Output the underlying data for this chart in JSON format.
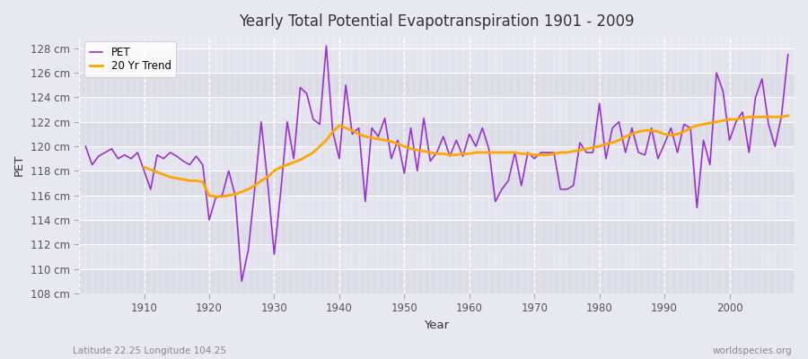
{
  "title": "Yearly Total Potential Evapotranspiration 1901 - 2009",
  "xlabel": "Year",
  "ylabel": "PET",
  "subtitle_left": "Latitude 22.25 Longitude 104.25",
  "subtitle_right": "worldspecies.org",
  "pet_color": "#9B30D0",
  "trend_color": "#FFA500",
  "background_color": "#E8E8F0",
  "plot_bg_color": "#DCDCE8",
  "band_color_light": "#E4E4EE",
  "band_color_dark": "#D5D5E2",
  "ylim": [
    108,
    129
  ],
  "ytick_interval": 2,
  "years": [
    1901,
    1902,
    1903,
    1904,
    1905,
    1906,
    1907,
    1908,
    1909,
    1910,
    1911,
    1912,
    1913,
    1914,
    1915,
    1916,
    1917,
    1918,
    1919,
    1920,
    1921,
    1922,
    1923,
    1924,
    1925,
    1926,
    1927,
    1928,
    1929,
    1930,
    1931,
    1932,
    1933,
    1934,
    1935,
    1936,
    1937,
    1938,
    1939,
    1940,
    1941,
    1942,
    1943,
    1944,
    1945,
    1946,
    1947,
    1948,
    1949,
    1950,
    1951,
    1952,
    1953,
    1954,
    1955,
    1956,
    1957,
    1958,
    1959,
    1960,
    1961,
    1962,
    1963,
    1964,
    1965,
    1966,
    1967,
    1968,
    1969,
    1970,
    1971,
    1972,
    1973,
    1974,
    1975,
    1976,
    1977,
    1978,
    1979,
    1980,
    1981,
    1982,
    1983,
    1984,
    1985,
    1986,
    1987,
    1988,
    1989,
    1990,
    1991,
    1992,
    1993,
    1994,
    1995,
    1996,
    1997,
    1998,
    1999,
    2000,
    2001,
    2002,
    2003,
    2004,
    2005,
    2006,
    2007,
    2008,
    2009
  ],
  "pet_values": [
    120.0,
    118.5,
    119.2,
    119.5,
    119.8,
    119.0,
    119.3,
    119.0,
    119.5,
    118.0,
    116.5,
    119.3,
    119.0,
    119.5,
    119.2,
    118.8,
    118.5,
    119.2,
    118.5,
    114.0,
    115.8,
    116.0,
    118.0,
    116.0,
    109.0,
    111.5,
    116.5,
    122.0,
    117.0,
    111.2,
    116.3,
    122.0,
    119.0,
    124.8,
    124.3,
    122.2,
    121.8,
    128.2,
    121.2,
    119.0,
    125.0,
    121.0,
    121.5,
    115.5,
    121.5,
    120.8,
    122.3,
    119.0,
    120.5,
    117.8,
    121.5,
    118.0,
    122.3,
    118.8,
    119.5,
    120.8,
    119.2,
    120.5,
    119.2,
    121.0,
    120.0,
    121.5,
    119.8,
    115.5,
    116.5,
    117.2,
    119.5,
    116.8,
    119.5,
    119.0,
    119.5,
    119.5,
    119.5,
    116.5,
    116.5,
    116.8,
    120.3,
    119.5,
    119.5,
    123.5,
    119.0,
    121.5,
    122.0,
    119.5,
    121.5,
    119.5,
    119.3,
    121.5,
    119.0,
    120.2,
    121.5,
    119.5,
    121.8,
    121.5,
    115.0,
    120.5,
    118.5,
    126.0,
    124.5,
    120.5,
    122.0,
    122.8,
    119.5,
    124.0,
    125.5,
    121.8,
    120.0,
    122.5,
    127.5
  ],
  "trend_years": [
    1910,
    1911,
    1912,
    1913,
    1914,
    1915,
    1916,
    1917,
    1918,
    1919,
    1920,
    1921,
    1922,
    1923,
    1924,
    1925,
    1926,
    1927,
    1928,
    1929,
    1930,
    1931,
    1932,
    1933,
    1934,
    1935,
    1936,
    1937,
    1938,
    1939,
    1940,
    1941,
    1942,
    1943,
    1944,
    1945,
    1946,
    1947,
    1948,
    1949,
    1950,
    1951,
    1952,
    1953,
    1954,
    1955,
    1956,
    1957,
    1958,
    1959,
    1960,
    1961,
    1962,
    1963,
    1964,
    1965,
    1966,
    1967,
    1968,
    1969,
    1970,
    1971,
    1972,
    1973,
    1974,
    1975,
    1976,
    1977,
    1978,
    1979,
    1980,
    1981,
    1982,
    1983,
    1984,
    1985,
    1986,
    1987,
    1988,
    1989,
    1990,
    1991,
    1992,
    1993,
    1994,
    1995,
    1996,
    1997,
    1998,
    1999,
    2000,
    2001,
    2002,
    2003,
    2004,
    2005,
    2006,
    2007,
    2008,
    2009
  ],
  "trend_values": [
    118.3,
    118.1,
    117.9,
    117.7,
    117.5,
    117.4,
    117.3,
    117.2,
    117.2,
    117.1,
    116.0,
    115.9,
    115.9,
    116.0,
    116.1,
    116.3,
    116.5,
    116.8,
    117.2,
    117.5,
    118.0,
    118.3,
    118.5,
    118.7,
    118.9,
    119.2,
    119.5,
    120.0,
    120.5,
    121.2,
    121.7,
    121.5,
    121.3,
    121.0,
    120.8,
    120.7,
    120.6,
    120.5,
    120.4,
    120.2,
    120.0,
    119.8,
    119.7,
    119.6,
    119.5,
    119.4,
    119.4,
    119.3,
    119.3,
    119.4,
    119.4,
    119.5,
    119.5,
    119.5,
    119.5,
    119.5,
    119.5,
    119.5,
    119.4,
    119.4,
    119.3,
    119.3,
    119.3,
    119.4,
    119.5,
    119.5,
    119.6,
    119.7,
    119.8,
    119.9,
    120.0,
    120.2,
    120.3,
    120.5,
    120.8,
    121.0,
    121.2,
    121.3,
    121.3,
    121.2,
    121.0,
    120.9,
    121.0,
    121.2,
    121.5,
    121.7,
    121.8,
    121.9,
    122.0,
    122.1,
    122.2,
    122.2,
    122.3,
    122.4,
    122.4,
    122.4,
    122.4,
    122.4,
    122.4,
    122.5
  ]
}
